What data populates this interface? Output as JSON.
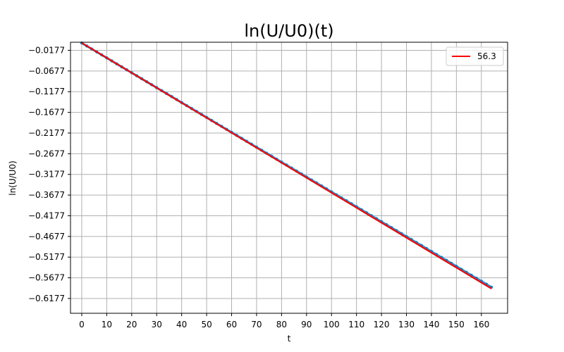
{
  "chart_data": {
    "type": "line",
    "title": "ln(U/U0)(t)",
    "xlabel": "t",
    "ylabel": "ln(U/U0)",
    "xlim": [
      -4.5,
      170.5
    ],
    "ylim": [
      -0.6535,
      0.0018
    ],
    "xticks": [
      "0",
      "10",
      "20",
      "30",
      "40",
      "50",
      "60",
      "70",
      "80",
      "90",
      "100",
      "110",
      "120",
      "130",
      "140",
      "150",
      "160"
    ],
    "yticks": [
      "-0.0177",
      "-0.0677",
      "-0.1177",
      "-0.1677",
      "-0.2177",
      "-0.2677",
      "-0.3177",
      "-0.3677",
      "-0.4177",
      "-0.4677",
      "-0.5177",
      "-0.5677",
      "-0.6177"
    ],
    "grid": true,
    "legend_position": "top-right",
    "series": [
      {
        "kind": "scatter",
        "color": "#1f77b4",
        "x": [
          0,
          2,
          4,
          6,
          8,
          10,
          12,
          14,
          16,
          18,
          20,
          22,
          24,
          26,
          28,
          30,
          32,
          34,
          36,
          38,
          40,
          42,
          44,
          46,
          48,
          50,
          52,
          54,
          56,
          58,
          60,
          62,
          64,
          66,
          68,
          70,
          72,
          74,
          76,
          78,
          80,
          82,
          84,
          86,
          88,
          90,
          92,
          94,
          96,
          98,
          100,
          102,
          104,
          106,
          108,
          110,
          112,
          114,
          116,
          118,
          120,
          122,
          124,
          126,
          128,
          130,
          132,
          134,
          136,
          138,
          140,
          142,
          144,
          146,
          148,
          150,
          152,
          154,
          156,
          158,
          160,
          162,
          164
        ],
        "y": [
          0.0,
          -0.0072,
          -0.0144,
          -0.0216,
          -0.0288,
          -0.036,
          -0.0432,
          -0.0504,
          -0.0576,
          -0.0648,
          -0.072,
          -0.0792,
          -0.0864,
          -0.0936,
          -0.1008,
          -0.108,
          -0.1152,
          -0.1224,
          -0.1296,
          -0.1368,
          -0.144,
          -0.1512,
          -0.1584,
          -0.1656,
          -0.1728,
          -0.18,
          -0.1872,
          -0.1944,
          -0.2016,
          -0.2088,
          -0.216,
          -0.2232,
          -0.2304,
          -0.2376,
          -0.2448,
          -0.252,
          -0.2592,
          -0.2664,
          -0.2736,
          -0.2808,
          -0.288,
          -0.2952,
          -0.3024,
          -0.3096,
          -0.3168,
          -0.324,
          -0.3312,
          -0.3384,
          -0.3456,
          -0.3528,
          -0.36,
          -0.3672,
          -0.3744,
          -0.3816,
          -0.3888,
          -0.396,
          -0.4032,
          -0.4104,
          -0.4176,
          -0.4248,
          -0.432,
          -0.4392,
          -0.4464,
          -0.4536,
          -0.4608,
          -0.468,
          -0.4752,
          -0.4824,
          -0.4896,
          -0.4968,
          -0.504,
          -0.5112,
          -0.5184,
          -0.5256,
          -0.5328,
          -0.54,
          -0.5472,
          -0.5544,
          -0.5616,
          -0.5688,
          -0.576,
          -0.5832,
          -0.5904
        ]
      },
      {
        "kind": "line",
        "name": "56.3",
        "color": "#ff0000",
        "x": [
          0,
          164
        ],
        "y": [
          0.0,
          -0.594
        ]
      }
    ]
  }
}
